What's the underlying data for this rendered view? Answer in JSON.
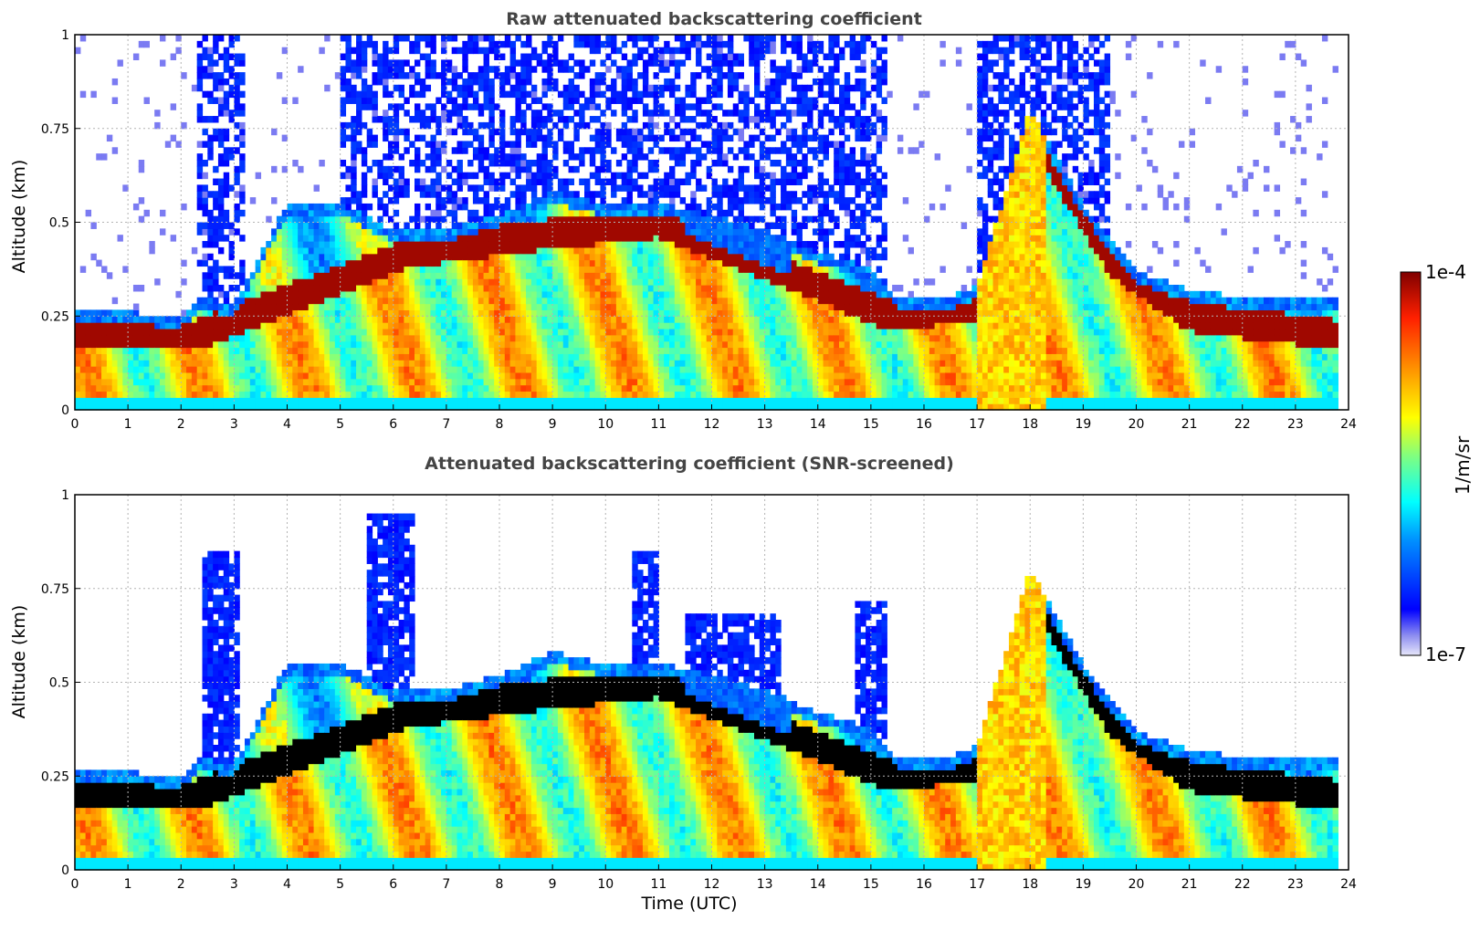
{
  "chart_data": [
    {
      "type": "heatmap",
      "title": "Raw attenuated backscattering coefficient",
      "xlabel": "",
      "ylabel": "Altitude (km)",
      "xlim": [
        0,
        24
      ],
      "ylim": [
        0,
        1
      ],
      "x_ticks": [
        "0",
        "1",
        "2",
        "3",
        "4",
        "5",
        "6",
        "7",
        "8",
        "9",
        "10",
        "11",
        "12",
        "13",
        "14",
        "15",
        "16",
        "17",
        "18",
        "19",
        "20",
        "21",
        "22",
        "23",
        "24"
      ],
      "y_ticks": [
        "0",
        "0.25",
        "0.5",
        "0.75",
        "1"
      ],
      "grid": true,
      "variant": "raw",
      "layers": {
        "note_units": "Time (UTC) hours vs altitude km",
        "boundary_layer_top_km": [
          [
            0,
            0.27
          ],
          [
            1,
            0.26
          ],
          [
            2,
            0.25
          ],
          [
            2.4,
            0.3
          ],
          [
            3,
            0.28
          ],
          [
            4,
            0.55
          ],
          [
            5,
            0.55
          ],
          [
            6,
            0.48
          ],
          [
            7,
            0.48
          ],
          [
            8,
            0.52
          ],
          [
            9,
            0.58
          ],
          [
            10,
            0.55
          ],
          [
            11,
            0.55
          ],
          [
            12,
            0.52
          ],
          [
            13,
            0.48
          ],
          [
            14,
            0.42
          ],
          [
            15,
            0.38
          ],
          [
            15.5,
            0.3
          ],
          [
            16.5,
            0.3
          ],
          [
            17,
            0.33
          ],
          [
            18,
            0.8
          ],
          [
            19,
            0.55
          ],
          [
            20,
            0.37
          ],
          [
            21,
            0.32
          ],
          [
            22,
            0.3
          ],
          [
            23,
            0.3
          ],
          [
            23.8,
            0.3
          ]
        ],
        "dense_layer_km": [
          [
            0,
            0.2
          ],
          [
            2.3,
            0.2
          ],
          [
            6.3,
            0.42
          ],
          [
            9,
            0.47
          ],
          [
            11,
            0.5
          ],
          [
            15.4,
            0.25
          ],
          [
            17,
            0.28
          ],
          [
            18.2,
            0.7
          ],
          [
            19.5,
            0.4
          ],
          [
            21,
            0.25
          ],
          [
            23.8,
            0.2
          ]
        ]
      }
    },
    {
      "type": "heatmap",
      "title": "Attenuated backscattering coefficient (SNR-screened)",
      "xlabel": "Time (UTC)",
      "ylabel": "Altitude (km)",
      "xlim": [
        0,
        24
      ],
      "ylim": [
        0,
        1
      ],
      "x_ticks": [
        "0",
        "1",
        "2",
        "3",
        "4",
        "5",
        "6",
        "7",
        "8",
        "9",
        "10",
        "11",
        "12",
        "13",
        "14",
        "15",
        "16",
        "17",
        "18",
        "19",
        "20",
        "21",
        "22",
        "23",
        "24"
      ],
      "y_ticks": [
        "0",
        "0.25",
        "0.5",
        "0.75",
        "1"
      ],
      "grid": true,
      "variant": "screened"
    }
  ],
  "colorbar": {
    "label": "1/m/sr",
    "max_label": "1e-4",
    "min_label": "1e-7",
    "scale": "log",
    "colormap": "jet"
  }
}
